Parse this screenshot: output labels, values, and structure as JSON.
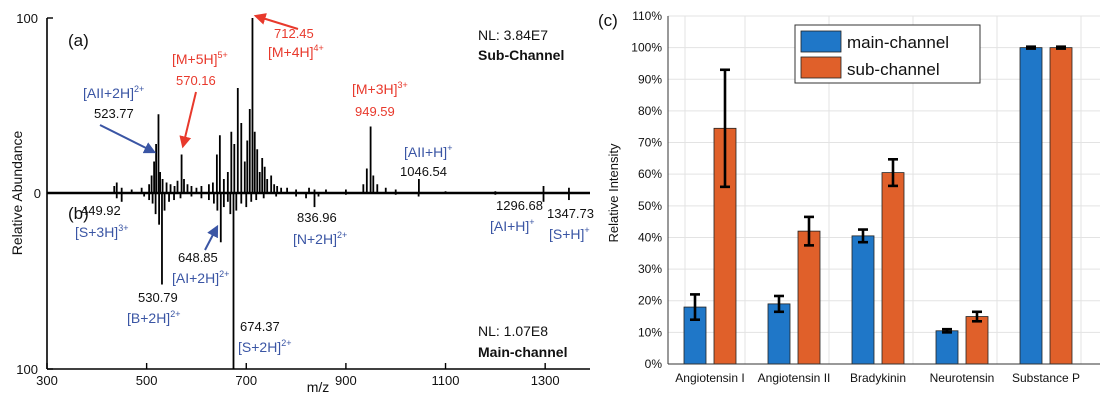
{
  "colors": {
    "red": "#e8392c",
    "blue": "#3a55a4",
    "main_channel": "#1f77c8",
    "sub_channel": "#e0602a",
    "axis": "#000000",
    "grid": "#e3e3e3"
  },
  "chart_data": [
    {
      "type": "line",
      "panel_label": "(a)",
      "channel_name": "Sub-Channel",
      "nl": "NL: 3.84E7",
      "direction": "up",
      "xlim": [
        300,
        1390
      ],
      "ylim": [
        0,
        100
      ],
      "peaks": [
        {
          "x": 435,
          "y": 4
        },
        {
          "x": 440,
          "y": 6
        },
        {
          "x": 449.9,
          "y": 3
        },
        {
          "x": 470,
          "y": 2
        },
        {
          "x": 490,
          "y": 3
        },
        {
          "x": 505,
          "y": 5
        },
        {
          "x": 510,
          "y": 10
        },
        {
          "x": 515,
          "y": 18
        },
        {
          "x": 519,
          "y": 28
        },
        {
          "x": 523.77,
          "y": 45
        },
        {
          "x": 527,
          "y": 12
        },
        {
          "x": 532,
          "y": 8
        },
        {
          "x": 540,
          "y": 6
        },
        {
          "x": 548,
          "y": 5
        },
        {
          "x": 556,
          "y": 4
        },
        {
          "x": 562,
          "y": 7
        },
        {
          "x": 570.16,
          "y": 22
        },
        {
          "x": 575,
          "y": 8
        },
        {
          "x": 582,
          "y": 5
        },
        {
          "x": 590,
          "y": 4
        },
        {
          "x": 600,
          "y": 3
        },
        {
          "x": 610,
          "y": 4
        },
        {
          "x": 625,
          "y": 5
        },
        {
          "x": 633,
          "y": 6
        },
        {
          "x": 641,
          "y": 22
        },
        {
          "x": 647,
          "y": 33
        },
        {
          "x": 655,
          "y": 8
        },
        {
          "x": 663,
          "y": 12
        },
        {
          "x": 670,
          "y": 35
        },
        {
          "x": 676,
          "y": 28
        },
        {
          "x": 683,
          "y": 60
        },
        {
          "x": 690,
          "y": 40
        },
        {
          "x": 697,
          "y": 18
        },
        {
          "x": 702,
          "y": 30
        },
        {
          "x": 707,
          "y": 48
        },
        {
          "x": 712.45,
          "y": 100
        },
        {
          "x": 717,
          "y": 35
        },
        {
          "x": 722,
          "y": 25
        },
        {
          "x": 727,
          "y": 12
        },
        {
          "x": 732,
          "y": 20
        },
        {
          "x": 737,
          "y": 15
        },
        {
          "x": 742,
          "y": 8
        },
        {
          "x": 750,
          "y": 10
        },
        {
          "x": 756,
          "y": 5
        },
        {
          "x": 762,
          "y": 4
        },
        {
          "x": 770,
          "y": 3
        },
        {
          "x": 782,
          "y": 3
        },
        {
          "x": 800,
          "y": 2
        },
        {
          "x": 826,
          "y": 3
        },
        {
          "x": 836.96,
          "y": 2
        },
        {
          "x": 860,
          "y": 2
        },
        {
          "x": 900,
          "y": 2
        },
        {
          "x": 935,
          "y": 5
        },
        {
          "x": 942,
          "y": 14
        },
        {
          "x": 949.59,
          "y": 38
        },
        {
          "x": 955,
          "y": 10
        },
        {
          "x": 963,
          "y": 5
        },
        {
          "x": 980,
          "y": 3
        },
        {
          "x": 1000,
          "y": 2
        },
        {
          "x": 1046.54,
          "y": 8
        },
        {
          "x": 1100,
          "y": 1
        },
        {
          "x": 1200,
          "y": 1
        },
        {
          "x": 1296.68,
          "y": 4
        },
        {
          "x": 1347.73,
          "y": 3
        }
      ],
      "annotations": [
        {
          "label": "[M+5H]",
          "charge": "5+",
          "value": "570.16",
          "color": "red"
        },
        {
          "label": "[M+4H]",
          "charge": "4+",
          "value": "712.45",
          "color": "red"
        },
        {
          "label": "[M+3H]",
          "charge": "3+",
          "value": "949.59",
          "color": "red"
        },
        {
          "label": "[AII+2H]",
          "charge": "2+",
          "value": "523.77",
          "color": "blue"
        },
        {
          "label": "[AII+H]",
          "charge": "+",
          "value": "1046.54",
          "color": "blue"
        }
      ]
    },
    {
      "type": "line",
      "panel_label": "(b)",
      "channel_name": "Main-channel",
      "nl": "NL: 1.07E8",
      "direction": "down",
      "xlim": [
        300,
        1390
      ],
      "ylim": [
        0,
        100
      ],
      "peaks": [
        {
          "x": 440,
          "y": 3
        },
        {
          "x": 449.92,
          "y": 5
        },
        {
          "x": 495,
          "y": 2
        },
        {
          "x": 505,
          "y": 4
        },
        {
          "x": 512,
          "y": 6
        },
        {
          "x": 518,
          "y": 12
        },
        {
          "x": 525,
          "y": 18
        },
        {
          "x": 530.79,
          "y": 52
        },
        {
          "x": 536,
          "y": 10
        },
        {
          "x": 545,
          "y": 5
        },
        {
          "x": 555,
          "y": 4
        },
        {
          "x": 568,
          "y": 3
        },
        {
          "x": 590,
          "y": 2
        },
        {
          "x": 610,
          "y": 3
        },
        {
          "x": 625,
          "y": 4
        },
        {
          "x": 635,
          "y": 6
        },
        {
          "x": 642,
          "y": 10
        },
        {
          "x": 648.85,
          "y": 28
        },
        {
          "x": 655,
          "y": 8
        },
        {
          "x": 663,
          "y": 5
        },
        {
          "x": 668,
          "y": 12
        },
        {
          "x": 674.37,
          "y": 100
        },
        {
          "x": 680,
          "y": 10
        },
        {
          "x": 690,
          "y": 6
        },
        {
          "x": 700,
          "y": 8
        },
        {
          "x": 710,
          "y": 5
        },
        {
          "x": 720,
          "y": 4
        },
        {
          "x": 735,
          "y": 3
        },
        {
          "x": 760,
          "y": 2
        },
        {
          "x": 800,
          "y": 2
        },
        {
          "x": 820,
          "y": 3
        },
        {
          "x": 836.96,
          "y": 8
        },
        {
          "x": 845,
          "y": 2
        },
        {
          "x": 900,
          "y": 1
        },
        {
          "x": 1000,
          "y": 1
        },
        {
          "x": 1046,
          "y": 2
        },
        {
          "x": 1200,
          "y": 1
        },
        {
          "x": 1296.68,
          "y": 5
        },
        {
          "x": 1347.73,
          "y": 4
        }
      ],
      "annotations": [
        {
          "label": "[S+3H]",
          "charge": "3+",
          "value": "449.92",
          "color": "blue"
        },
        {
          "label": "[B+2H]",
          "charge": "2+",
          "value": "530.79",
          "color": "blue"
        },
        {
          "label": "[AI+2H]",
          "charge": "2+",
          "value": "648.85",
          "color": "blue"
        },
        {
          "label": "[S+2H]",
          "charge": "2+",
          "value": "674.37",
          "color": "blue"
        },
        {
          "label": "[N+2H]",
          "charge": "2+",
          "value": "836.96",
          "color": "blue"
        },
        {
          "label": "[AI+H]",
          "charge": "+",
          "value": "1296.68",
          "color": "blue"
        },
        {
          "label": "[S+H]",
          "charge": "+",
          "value": "1347.73",
          "color": "blue"
        }
      ]
    },
    {
      "type": "bar",
      "panel_label": "(c)",
      "categories": [
        "Angiotensin I",
        "Angiotensin II",
        "Bradykinin",
        "Neurotensin",
        "Substance P"
      ],
      "series": [
        {
          "name": "main-channel",
          "values": [
            18,
            19,
            40.5,
            10.5,
            100
          ],
          "errors": [
            4,
            2.5,
            2,
            0.5,
            0.3
          ]
        },
        {
          "name": "sub-channel",
          "values": [
            74.5,
            42,
            60.5,
            15,
            100
          ],
          "errors": [
            18.5,
            4.5,
            4.2,
            1.5,
            0.3
          ]
        }
      ],
      "ylabel": "Relative Intensity",
      "ylim": [
        0,
        110
      ],
      "yticks": [
        "0%",
        "10%",
        "20%",
        "30%",
        "40%",
        "50%",
        "60%",
        "70%",
        "80%",
        "90%",
        "100%",
        "110%"
      ],
      "grid": true,
      "legend": "top-center"
    }
  ],
  "spectrum_axes": {
    "xlabel": "m/z",
    "ylabel": "Relative Abundance",
    "xticks": [
      "300",
      "500",
      "700",
      "900",
      "1100",
      "1300"
    ],
    "y_top": "100",
    "y_mid": "0",
    "y_bottom": "100"
  }
}
